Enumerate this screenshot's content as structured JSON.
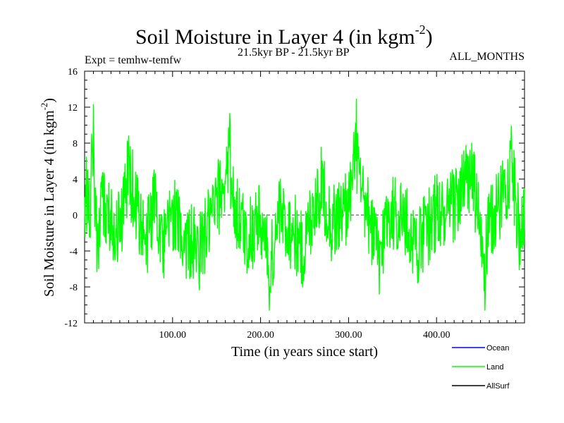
{
  "chart_data": {
    "type": "line",
    "title": "Soil Moisture in Layer 4 (in kgm",
    "title_sup": "-2",
    "title_close": ")",
    "subtitle_left": "Expt = temhw-temfw",
    "subtitle_center": "21.5kyr BP - 21.5kyr BP",
    "subtitle_right": "ALL_MONTHS",
    "xlabel": "Time (in years since start)",
    "ylabel": "Soil Moisture in Layer 4 (in kgm",
    "ylabel_sup": "-2",
    "ylabel_close": ")",
    "xlim": [
      0,
      500
    ],
    "ylim": [
      -12,
      16
    ],
    "xticks": [
      100,
      200,
      300,
      400
    ],
    "xtick_labels": [
      "100.00",
      "200.00",
      "300.00",
      "400.00"
    ],
    "yticks": [
      16,
      12,
      8,
      4,
      0,
      -4,
      -8,
      -12
    ],
    "ytick_labels": [
      "16",
      "12",
      "8",
      "4",
      "0",
      "-4",
      "-8",
      "-12"
    ],
    "reference_line": 0,
    "legend_position": "bottom-right",
    "legend": [
      {
        "name": "Ocean",
        "color": "#0000ff"
      },
      {
        "name": "Land",
        "color": "#00ff00"
      },
      {
        "name": "AllSurf",
        "color": "#000000"
      }
    ],
    "series": [
      {
        "name": "Land",
        "color": "#00ff00",
        "x_start": 0,
        "x_end": 500,
        "points": 1000,
        "noise_seed": 20,
        "anchors": [
          [
            0,
            2
          ],
          [
            3,
            5
          ],
          [
            6,
            -2
          ],
          [
            8,
            9
          ],
          [
            10,
            12.3
          ],
          [
            12,
            3
          ],
          [
            14,
            -6.3
          ],
          [
            20,
            2
          ],
          [
            40,
            -3
          ],
          [
            50,
            8.8
          ],
          [
            60,
            1
          ],
          [
            70,
            -5.5
          ],
          [
            80,
            4
          ],
          [
            90,
            -7
          ],
          [
            100,
            1
          ],
          [
            110,
            -4
          ],
          [
            130,
            -7.5
          ],
          [
            150,
            2
          ],
          [
            165,
            11.3
          ],
          [
            170,
            2
          ],
          [
            185,
            -5
          ],
          [
            200,
            0
          ],
          [
            210,
            -10.6
          ],
          [
            215,
            -7
          ],
          [
            220,
            0
          ],
          [
            240,
            -4
          ],
          [
            248,
            -8
          ],
          [
            260,
            2
          ],
          [
            270,
            6
          ],
          [
            280,
            -2
          ],
          [
            300,
            2
          ],
          [
            309,
            12.9
          ],
          [
            315,
            3
          ],
          [
            325,
            -2
          ],
          [
            335,
            -8.8
          ],
          [
            345,
            1
          ],
          [
            360,
            0
          ],
          [
            370,
            -4
          ],
          [
            380,
            -6
          ],
          [
            400,
            1
          ],
          [
            410,
            -1
          ],
          [
            425,
            4
          ],
          [
            440,
            8
          ],
          [
            450,
            -3
          ],
          [
            455,
            -10.6
          ],
          [
            460,
            -2
          ],
          [
            470,
            2
          ],
          [
            485,
            9.9
          ],
          [
            495,
            -5.5
          ],
          [
            500,
            3
          ]
        ]
      }
    ]
  }
}
